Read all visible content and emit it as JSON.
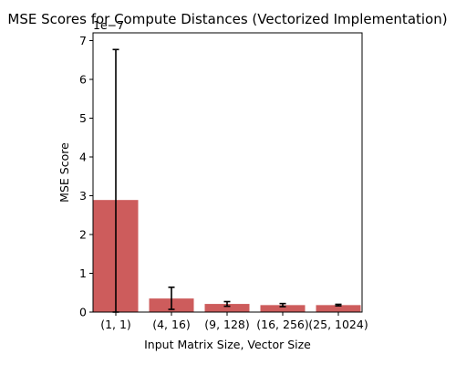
{
  "chart_data": {
    "type": "bar",
    "title": "MSE Scores for Compute Distances (Vectorized Implementation)",
    "xlabel": "Input Matrix Size, Vector Size",
    "ylabel": "MSE Score",
    "y_scale_multiplier_label": "1e−7",
    "categories": [
      "(1, 1)",
      "(4, 16)",
      "(9, 128)",
      "(16, 256)",
      "(25, 1024)"
    ],
    "values": [
      2.89,
      0.35,
      0.21,
      0.18,
      0.18
    ],
    "error_low": [
      0.0,
      0.07,
      0.15,
      0.14,
      0.16
    ],
    "error_high": [
      6.77,
      0.64,
      0.27,
      0.22,
      0.2
    ],
    "value_unit_note": "values in units of 1e-7",
    "ylim": [
      0,
      7.2
    ],
    "yticks": [
      0,
      1,
      2,
      3,
      4,
      5,
      6,
      7
    ],
    "bar_color": "#cd5c5c",
    "error_bar_color": "#000000",
    "grid": false
  }
}
